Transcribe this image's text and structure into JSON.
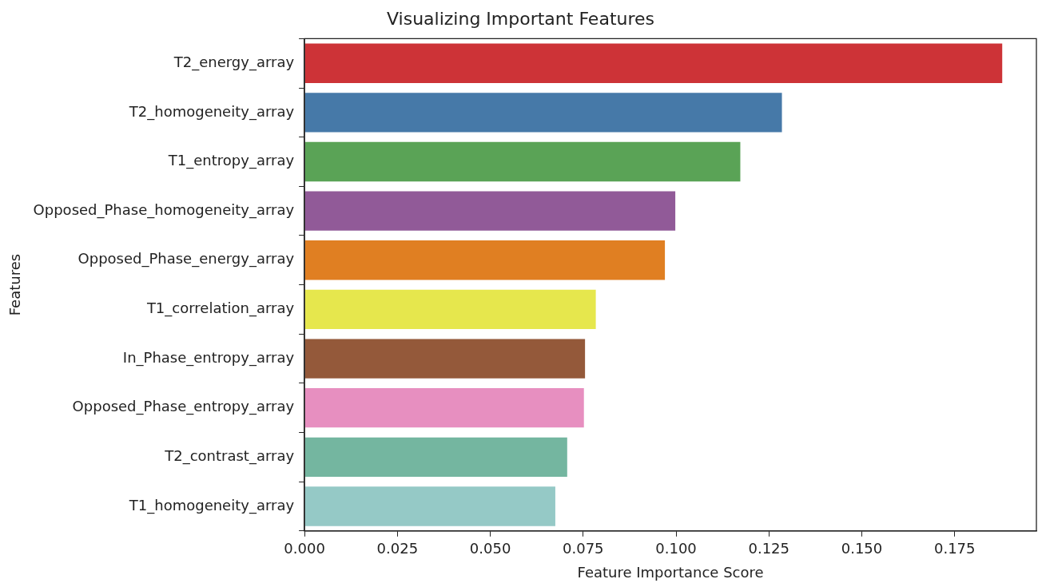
{
  "chart_data": {
    "type": "bar",
    "orientation": "horizontal",
    "title": "Visualizing Important Features",
    "xlabel": "Feature Importance Score",
    "ylabel": "Features",
    "categories": [
      "T2_energy_array",
      "T2_homogeneity_array",
      "T1_entropy_array",
      "Opposed_Phase_homogeneity_array",
      "Opposed_Phase_energy_array",
      "T1_correlation_array",
      "In_Phase_entropy_array",
      "Opposed_Phase_entropy_array",
      "T2_contrast_array",
      "T1_homogeneity_array"
    ],
    "values": [
      0.1878,
      0.1285,
      0.1173,
      0.0998,
      0.097,
      0.0784,
      0.0755,
      0.0752,
      0.0707,
      0.0675
    ],
    "colors": [
      "#cd3337",
      "#4679a8",
      "#5aa356",
      "#915a98",
      "#e07f22",
      "#e6e74d",
      "#94593a",
      "#e78fc0",
      "#74b6a0",
      "#95c9c6"
    ],
    "xlim": [
      0,
      0.197
    ],
    "xticks": [
      {
        "value": 0,
        "label": "0.000"
      },
      {
        "value": 0.025,
        "label": "0.025"
      },
      {
        "value": 0.05,
        "label": "0.050"
      },
      {
        "value": 0.075,
        "label": "0.075"
      },
      {
        "value": 0.1,
        "label": "0.100"
      },
      {
        "value": 0.125,
        "label": "0.125"
      },
      {
        "value": 0.15,
        "label": "0.150"
      },
      {
        "value": 0.175,
        "label": "0.175"
      }
    ],
    "grid": false,
    "legend": false
  }
}
